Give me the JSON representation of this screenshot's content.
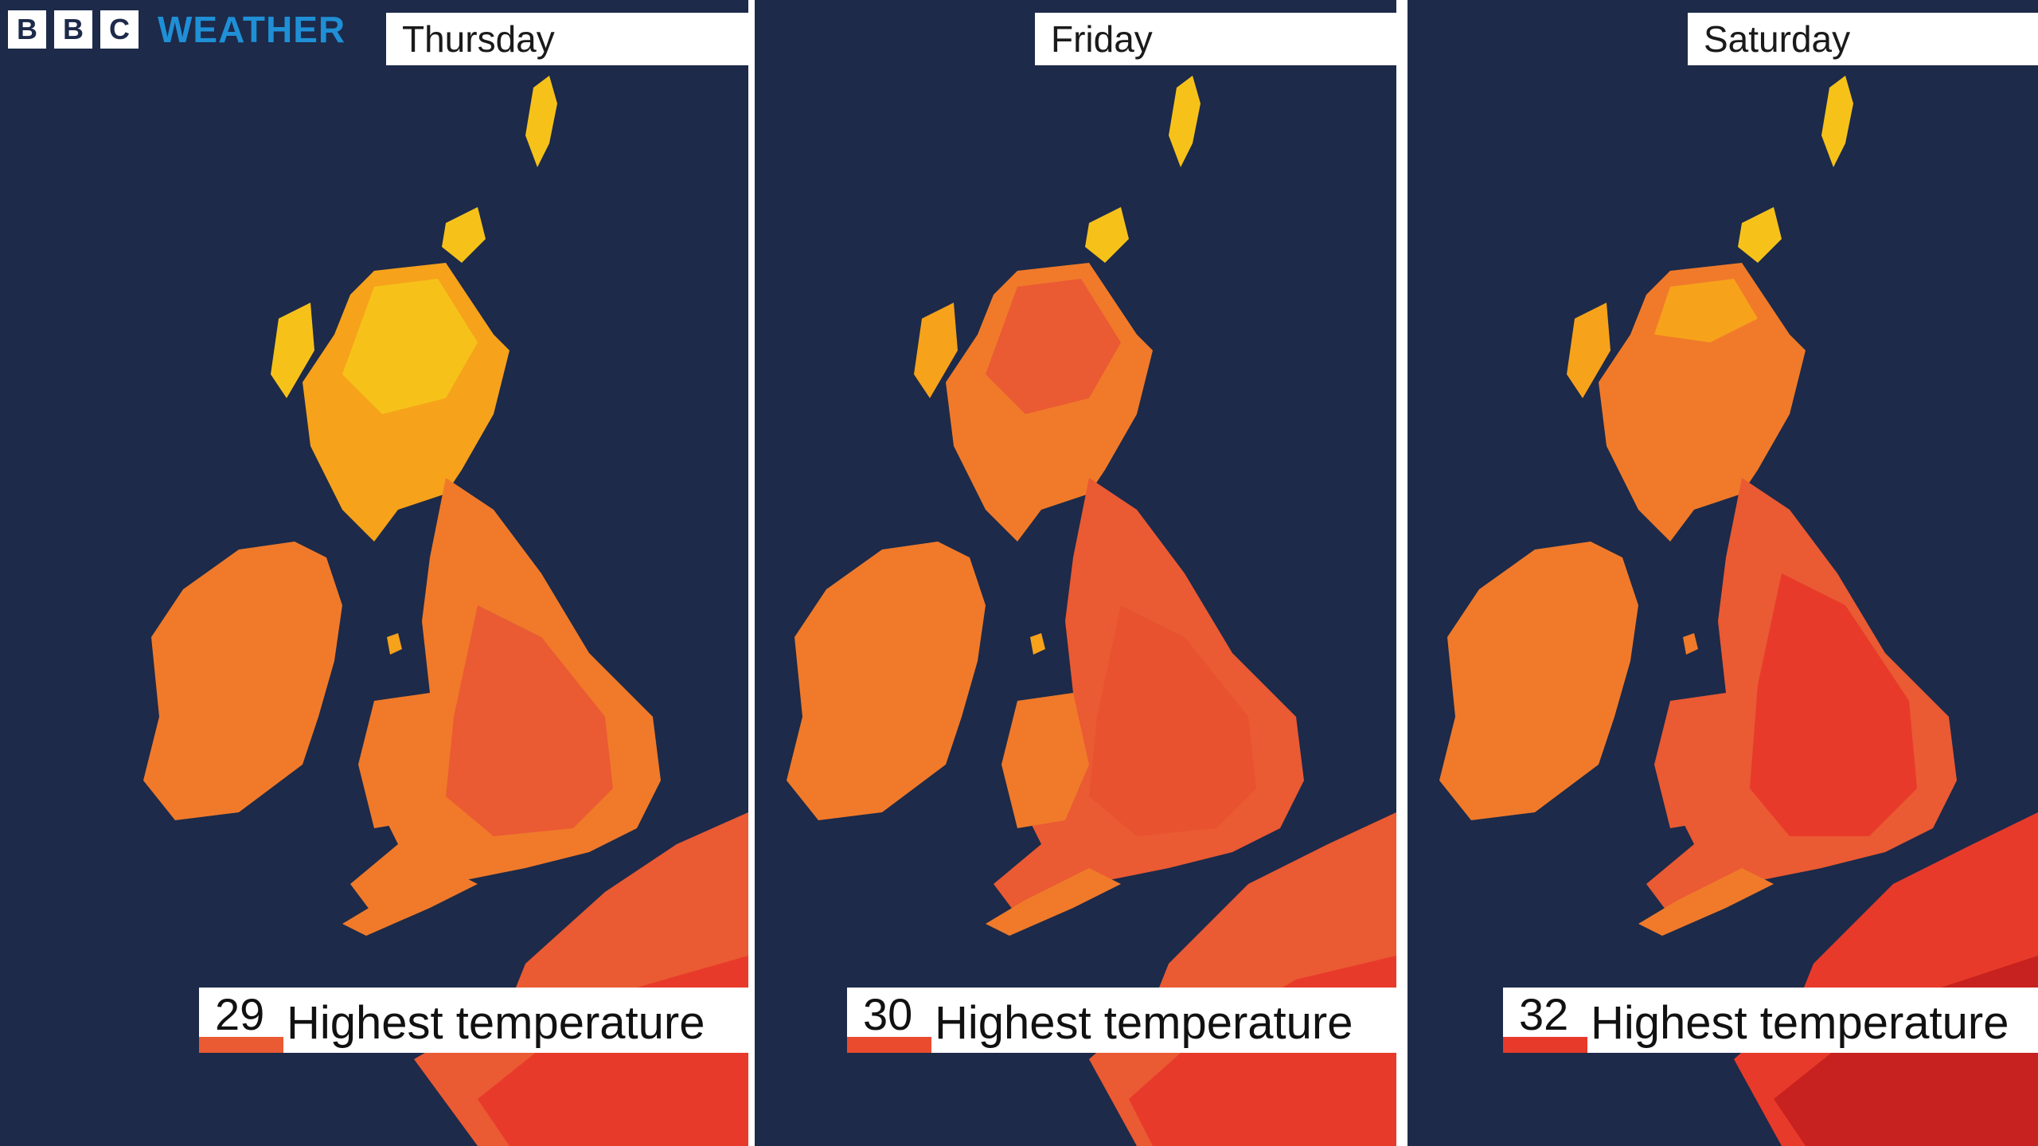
{
  "brand": {
    "letters": [
      "B",
      "B",
      "C"
    ],
    "word": "WEATHER",
    "color": "#1f8fd6"
  },
  "legend_caption": "Highest temperature",
  "palette": {
    "sea": "#1d2a49",
    "yellow": "#f6c21a",
    "amber": "#f7a21b",
    "orange": "#f07a2a",
    "deep_orange": "#ea5a33",
    "red": "#e83a2a",
    "dark_red": "#c7221f"
  },
  "panels": [
    {
      "day": "Thursday",
      "max_temp": "29",
      "swatch_color": "#ea5a33"
    },
    {
      "day": "Friday",
      "max_temp": "30",
      "swatch_color": "#ea4b2f"
    },
    {
      "day": "Saturday",
      "max_temp": "32",
      "swatch_color": "#e83a2a"
    }
  ]
}
